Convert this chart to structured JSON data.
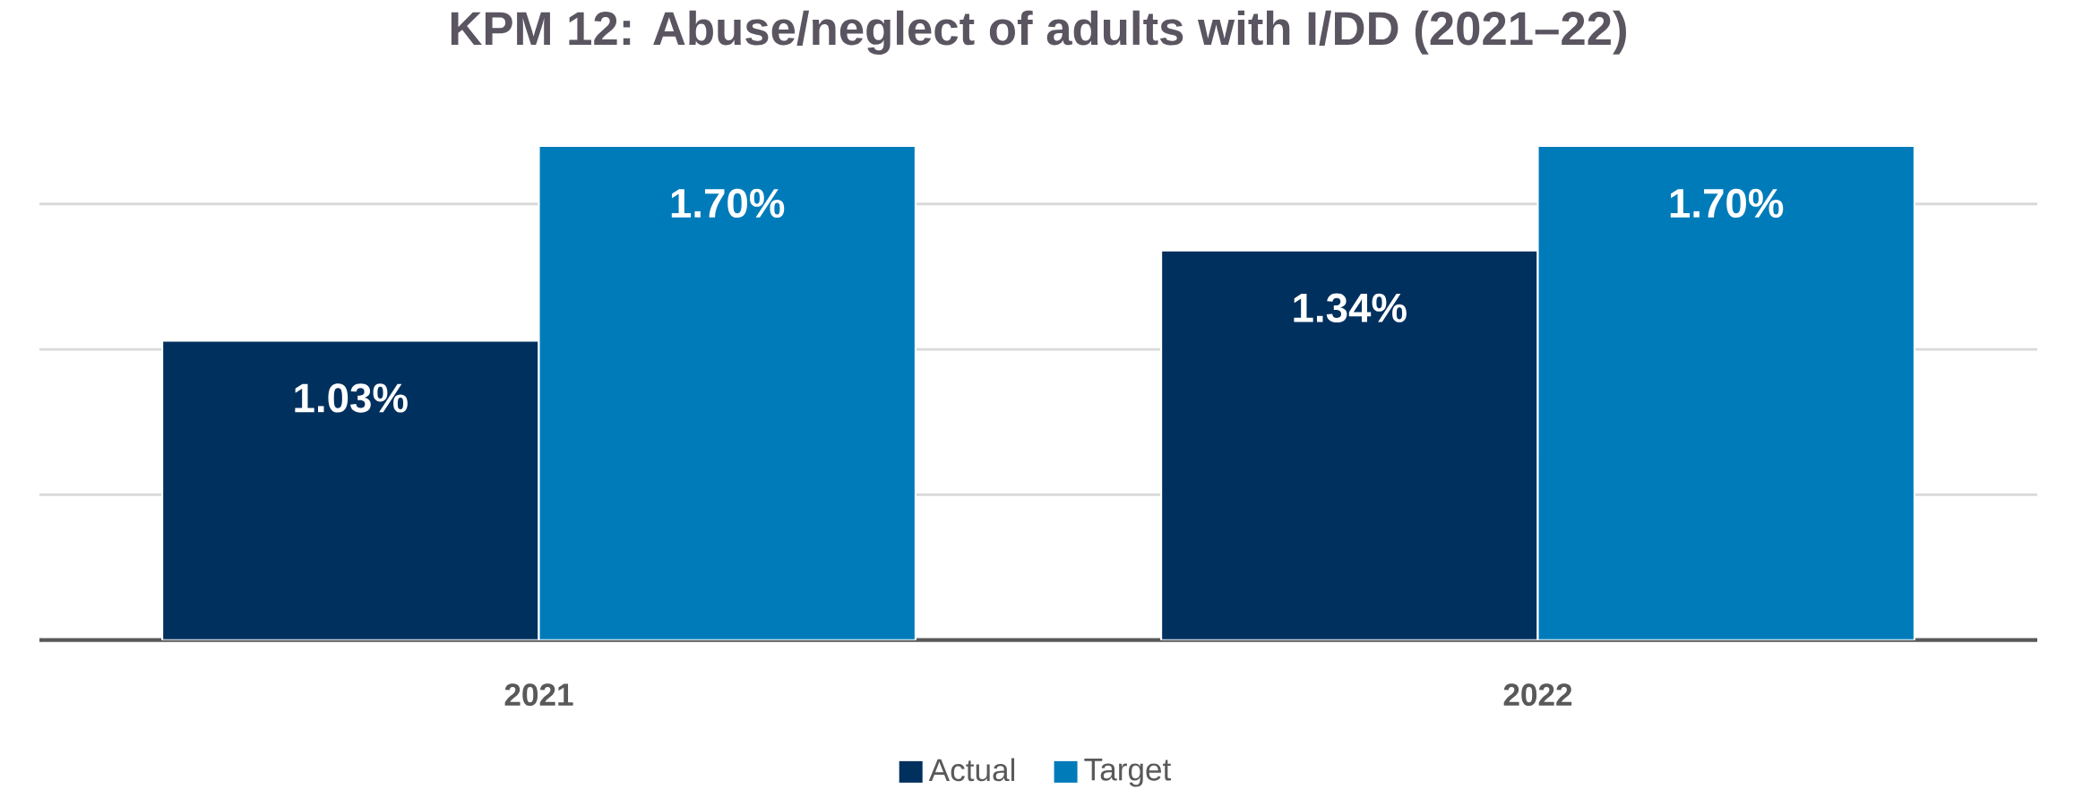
{
  "chart_data": {
    "type": "bar",
    "title": "KPM 12: Abuse/neglect of adults with I/DD (2021–22)",
    "categories": [
      "2021",
      "2022"
    ],
    "series": [
      {
        "name": "Actual",
        "color": "#00305e",
        "values": [
          1.03,
          1.34
        ],
        "value_labels": [
          "1.03%",
          "1.34%"
        ]
      },
      {
        "name": "Target",
        "color": "#007bba",
        "values": [
          1.7,
          1.7
        ],
        "value_labels": [
          "1.70%",
          "1.70%"
        ]
      }
    ],
    "tick_labels": "x",
    "grid": "y",
    "legend": "bottom"
  }
}
